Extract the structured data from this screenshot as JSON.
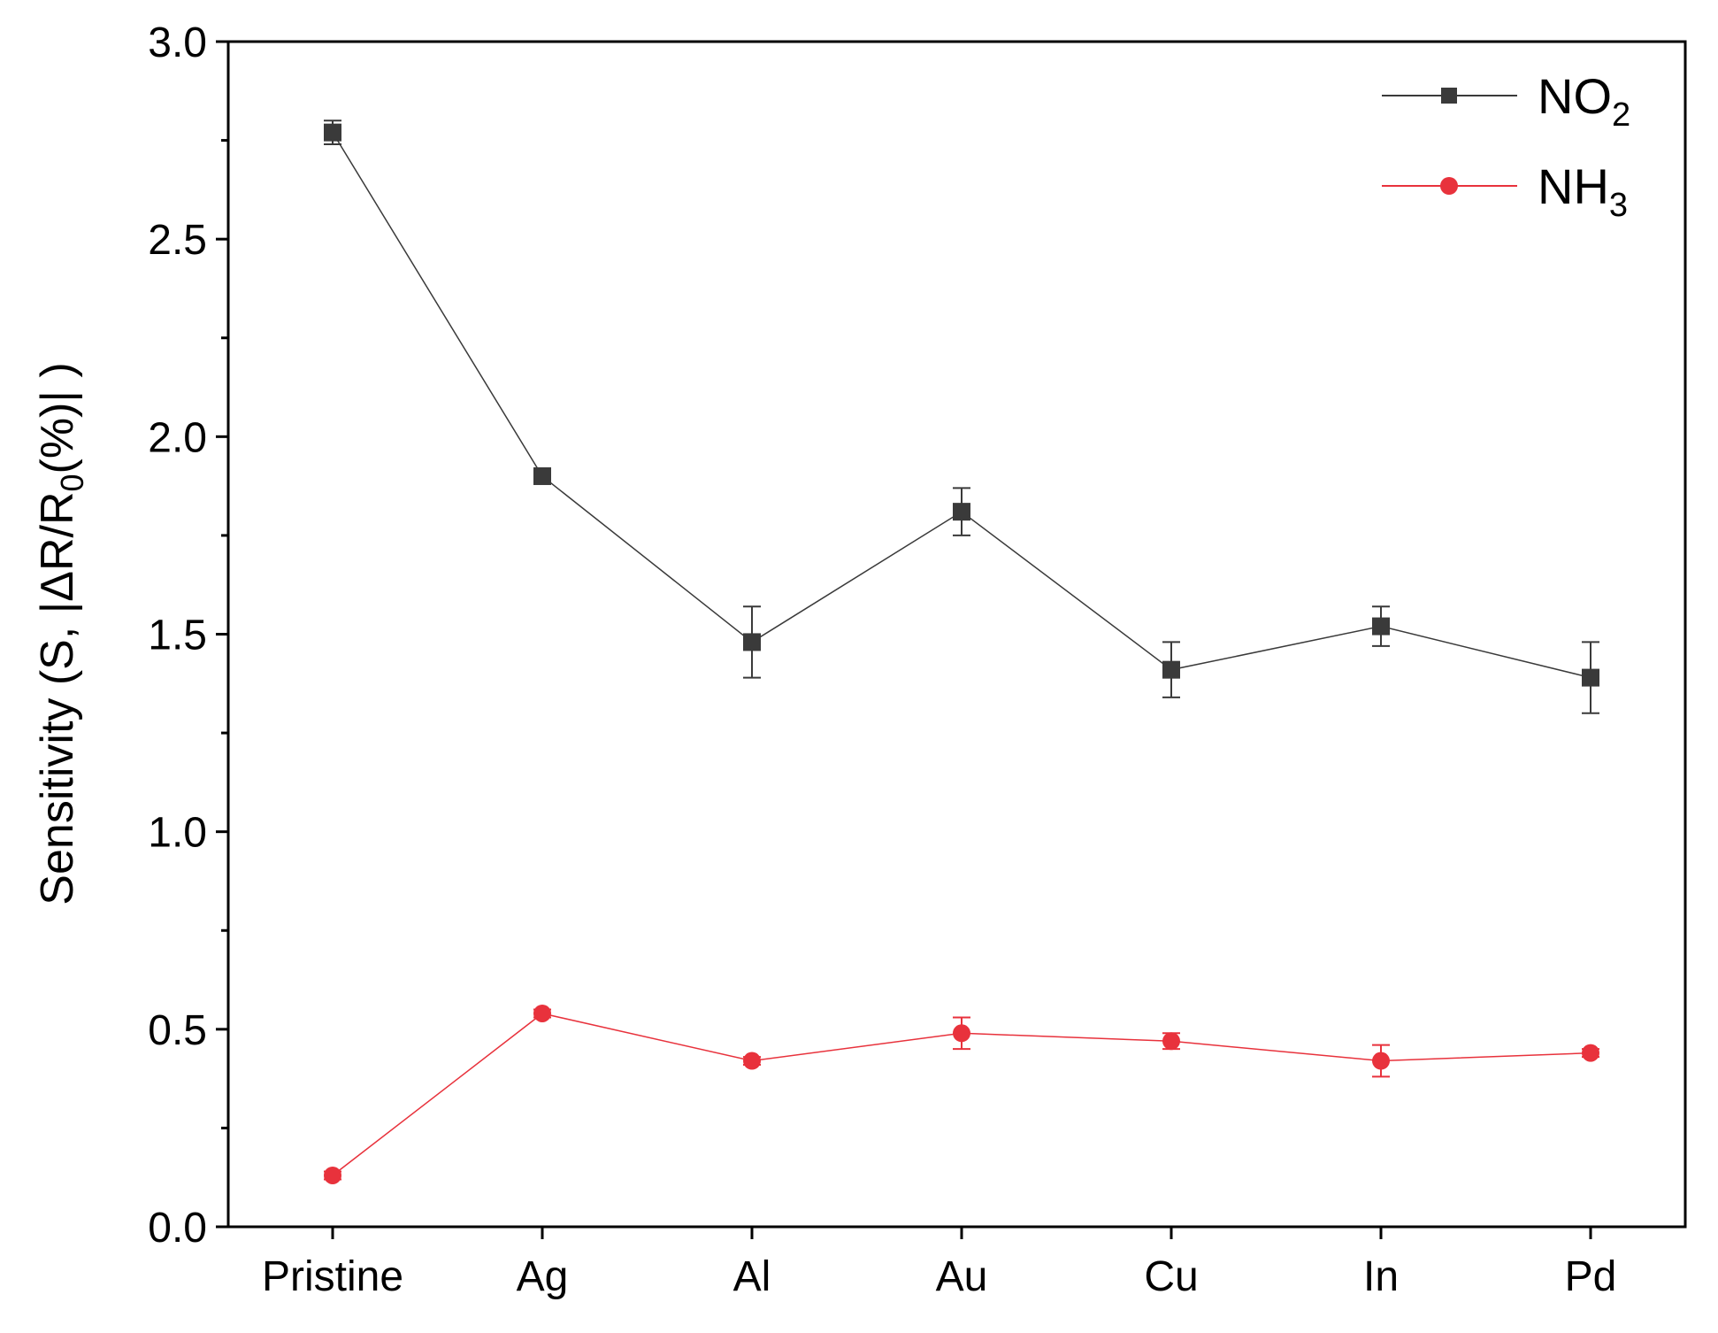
{
  "chart_data": {
    "type": "line",
    "title": "",
    "xlabel": "",
    "ylabel": "Sensitivity (S, |ΔR/R0(%)| )",
    "ylabel_parts": {
      "main": "Sensitivity (S, |ΔR/R",
      "sub": "0",
      "tail": "(%)| )"
    },
    "categories": [
      "Pristine",
      "Ag",
      "Al",
      "Au",
      "Cu",
      "In",
      "Pd"
    ],
    "ylim": [
      0,
      3.0
    ],
    "yticks": [
      "0.0",
      "0.5",
      "1.0",
      "1.5",
      "2.0",
      "2.5",
      "3.0"
    ],
    "grid": false,
    "legend_position": "top-right",
    "series": [
      {
        "name": "NO2",
        "label_main": "NO",
        "label_sub": "2",
        "color": "#3a3a3a",
        "marker": "square",
        "values": [
          2.77,
          1.9,
          1.48,
          1.81,
          1.41,
          1.52,
          1.39
        ],
        "errors": [
          0.03,
          0.01,
          0.09,
          0.06,
          0.07,
          0.05,
          0.09
        ]
      },
      {
        "name": "NH3",
        "label_main": "NH",
        "label_sub": "3",
        "color": "#e8323c",
        "marker": "circle",
        "values": [
          0.13,
          0.54,
          0.42,
          0.49,
          0.47,
          0.42,
          0.44
        ],
        "errors": [
          0.01,
          0.01,
          0.01,
          0.04,
          0.02,
          0.04,
          0.01
        ]
      }
    ]
  }
}
